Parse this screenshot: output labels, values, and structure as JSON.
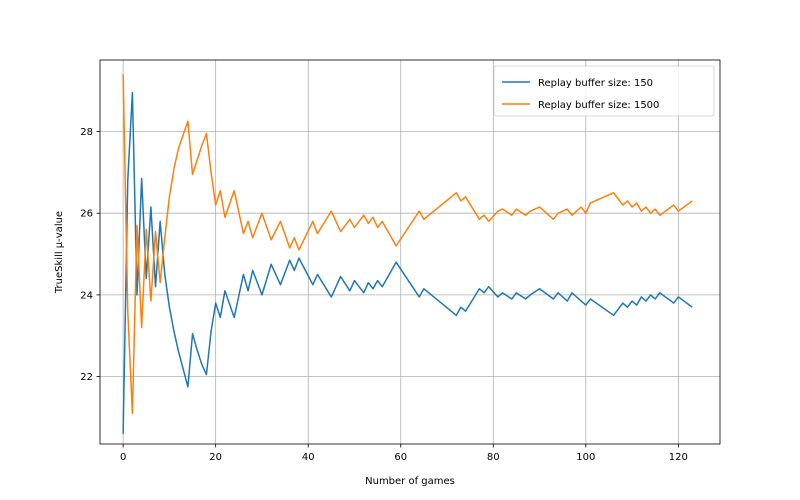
{
  "chart_data": {
    "type": "line",
    "title": "",
    "xlabel": "Number of games",
    "ylabel": "TrueSkill μ-value",
    "xlim": [
      -5,
      129
    ],
    "ylim": [
      20.35,
      29.75
    ],
    "xticks": [
      0,
      20,
      40,
      60,
      80,
      100,
      120
    ],
    "yticks": [
      22,
      24,
      26,
      28
    ],
    "grid": true,
    "legend_position": "top-right",
    "series": [
      {
        "name": "Replay buffer size: 150",
        "color": "#1f77b4",
        "x": [
          0,
          1,
          2,
          3,
          4,
          5,
          6,
          7,
          8,
          9,
          10,
          11,
          12,
          14,
          15,
          16,
          17,
          18,
          19,
          20,
          21,
          22,
          24,
          26,
          27,
          28,
          30,
          32,
          34,
          36,
          37,
          38,
          41,
          42,
          45,
          47,
          49,
          50,
          52,
          53,
          54,
          55,
          56,
          59,
          64,
          65,
          72,
          73,
          74,
          77,
          78,
          79,
          81,
          82,
          84,
          85,
          87,
          88,
          90,
          93,
          94,
          96,
          97,
          99,
          100,
          101,
          106,
          108,
          109,
          110,
          111,
          112,
          113,
          114,
          115,
          116,
          119,
          120,
          123
        ],
        "values": [
          20.6,
          26.8,
          28.95,
          24.0,
          26.85,
          24.4,
          26.15,
          24.2,
          25.8,
          24.5,
          23.7,
          23.1,
          22.6,
          21.75,
          23.05,
          22.65,
          22.3,
          22.05,
          23.1,
          23.8,
          23.45,
          24.1,
          23.45,
          24.5,
          24.1,
          24.6,
          24.0,
          24.75,
          24.25,
          24.85,
          24.6,
          24.9,
          24.25,
          24.5,
          23.95,
          24.45,
          24.1,
          24.35,
          24.05,
          24.3,
          24.15,
          24.35,
          24.2,
          24.8,
          23.95,
          24.15,
          23.5,
          23.7,
          23.6,
          24.15,
          24.05,
          24.2,
          23.95,
          24.05,
          23.9,
          24.05,
          23.9,
          24.0,
          24.15,
          23.9,
          24.05,
          23.85,
          24.05,
          23.85,
          23.75,
          23.9,
          23.5,
          23.8,
          23.7,
          23.85,
          23.75,
          23.95,
          23.85,
          24.0,
          23.9,
          24.05,
          23.8,
          23.95,
          23.7
        ]
      },
      {
        "name": "Replay buffer size: 1500",
        "color": "#ff7f0e",
        "x": [
          0,
          1,
          2,
          3,
          4,
          5,
          6,
          7,
          8,
          9,
          10,
          11,
          12,
          14,
          15,
          16,
          17,
          18,
          19,
          20,
          21,
          22,
          24,
          26,
          27,
          28,
          30,
          32,
          34,
          36,
          37,
          38,
          41,
          42,
          45,
          47,
          49,
          50,
          52,
          53,
          54,
          55,
          56,
          59,
          64,
          65,
          72,
          73,
          74,
          77,
          78,
          79,
          81,
          82,
          84,
          85,
          87,
          88,
          90,
          93,
          94,
          96,
          97,
          99,
          100,
          101,
          106,
          108,
          109,
          110,
          111,
          112,
          113,
          114,
          115,
          116,
          119,
          120,
          123
        ],
        "values": [
          29.4,
          23.6,
          21.1,
          25.7,
          23.2,
          25.6,
          23.85,
          25.55,
          24.3,
          25.4,
          26.4,
          27.1,
          27.6,
          28.25,
          26.95,
          27.3,
          27.65,
          27.95,
          27.0,
          26.2,
          26.55,
          25.9,
          26.55,
          25.5,
          25.8,
          25.4,
          26.0,
          25.35,
          25.8,
          25.15,
          25.4,
          25.1,
          25.8,
          25.5,
          26.05,
          25.55,
          25.85,
          25.65,
          25.95,
          25.75,
          25.9,
          25.65,
          25.8,
          25.2,
          26.05,
          25.85,
          26.5,
          26.3,
          26.4,
          25.85,
          25.95,
          25.8,
          26.05,
          26.1,
          25.95,
          26.1,
          25.95,
          26.05,
          26.15,
          25.85,
          26.0,
          26.1,
          25.95,
          26.15,
          26.0,
          26.25,
          26.5,
          26.2,
          26.3,
          26.15,
          26.25,
          26.05,
          26.15,
          26.0,
          26.1,
          25.95,
          26.2,
          26.05,
          26.3
        ]
      }
    ]
  }
}
